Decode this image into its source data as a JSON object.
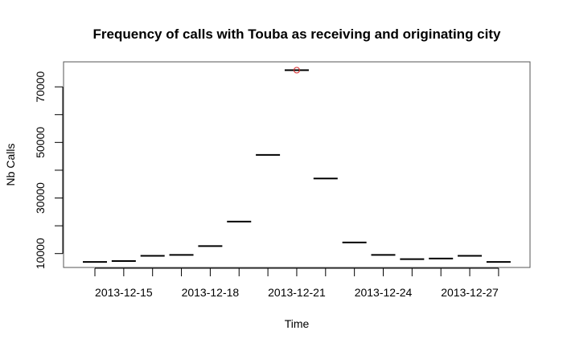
{
  "chart_data": {
    "type": "line",
    "title": "Frequency of calls with Touba as receiving and originating city",
    "xlabel": "Time",
    "ylabel": "Nb Calls",
    "x_dates": [
      "2013-12-14",
      "2013-12-15",
      "2013-12-16",
      "2013-12-17",
      "2013-12-18",
      "2013-12-19",
      "2013-12-20",
      "2013-12-21",
      "2013-12-22",
      "2013-12-23",
      "2013-12-24",
      "2013-12-25",
      "2013-12-26",
      "2013-12-27",
      "2013-12-28"
    ],
    "values": [
      7000,
      7300,
      9200,
      9500,
      12700,
      21500,
      45500,
      76000,
      37000,
      14000,
      9500,
      8000,
      8200,
      9200,
      7000
    ],
    "highlight": {
      "date": "2013-12-21",
      "value": 76000,
      "color": "#d62728"
    },
    "x_ticks": [
      "2013-12-14",
      "2013-12-15",
      "2013-12-16",
      "2013-12-17",
      "2013-12-18",
      "2013-12-19",
      "2013-12-20",
      "2013-12-21",
      "2013-12-22",
      "2013-12-23",
      "2013-12-24",
      "2013-12-25",
      "2013-12-26",
      "2013-12-27",
      "2013-12-28"
    ],
    "x_tick_labels": [
      {
        "date": "2013-12-15",
        "label": "2013-12-15"
      },
      {
        "date": "2013-12-18",
        "label": "2013-12-18"
      },
      {
        "date": "2013-12-21",
        "label": "2013-12-21"
      },
      {
        "date": "2013-12-24",
        "label": "2013-12-24"
      },
      {
        "date": "2013-12-27",
        "label": "2013-12-27"
      }
    ],
    "y_ticks": [
      10000,
      20000,
      30000,
      40000,
      50000,
      60000,
      70000
    ],
    "y_tick_labels": [
      "10000",
      "30000",
      "50000",
      "70000"
    ],
    "ylim": [
      5000,
      79000
    ],
    "grid": false,
    "line_color": "#000000"
  }
}
